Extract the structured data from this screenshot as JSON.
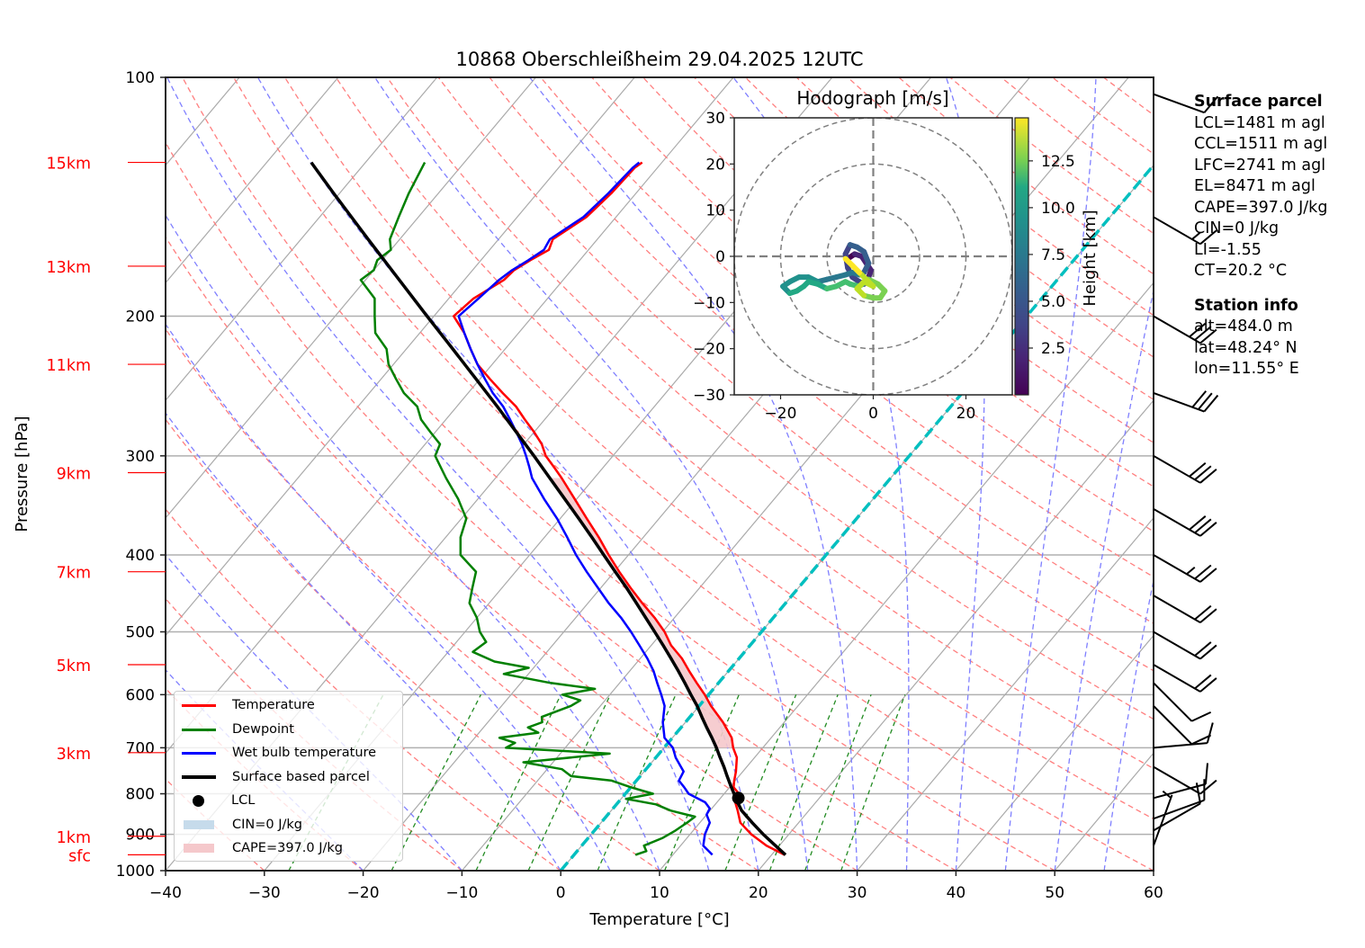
{
  "title": "10868 Oberschleißheim 29.04.2025 12UTC",
  "colors": {
    "temperature": "#ff0000",
    "dewpoint": "#008000",
    "wetbulb": "#0000ff",
    "parcel": "#000000",
    "freezing": "#00bfbf",
    "dry_adiabat": "#ff7f7f",
    "moist_adiabat": "#7f7fff",
    "mixing_ratio": "#228b22",
    "cape_fill": "#f5c8cb",
    "cin_fill": "#c6dbeb"
  },
  "chart_data": {
    "type": "skewt",
    "title": "10868 Oberschleißheim 29.04.2025 12UTC",
    "xlabel": "Temperature [°C]",
    "ylabel": "Pressure [hPa]",
    "xlim": [
      -40,
      60
    ],
    "ylim": [
      1000,
      100
    ],
    "xticks": [
      "−40",
      "−30",
      "−20",
      "−10",
      "0",
      "10",
      "20",
      "30",
      "40",
      "50",
      "60"
    ],
    "xtick_values": [
      -40,
      -30,
      -20,
      -10,
      0,
      10,
      20,
      30,
      40,
      50,
      60
    ],
    "yticks": [
      "100",
      "200",
      "300",
      "400",
      "500",
      "600",
      "700",
      "800",
      "900",
      "1000"
    ],
    "ytick_values": [
      100,
      200,
      300,
      400,
      500,
      600,
      700,
      800,
      900,
      1000
    ],
    "height_labels": [
      {
        "label": "15km",
        "p": 128
      },
      {
        "label": "13km",
        "p": 173
      },
      {
        "label": "11km",
        "p": 230
      },
      {
        "label": "9km",
        "p": 315
      },
      {
        "label": "7km",
        "p": 420
      },
      {
        "label": "5km",
        "p": 550
      },
      {
        "label": "3km",
        "p": 710
      },
      {
        "label": "1km",
        "p": 905
      },
      {
        "label": "sfc",
        "p": 955
      }
    ],
    "series": [
      {
        "name": "Temperature",
        "p": [
          955,
          930,
          900,
          870,
          840,
          815,
          800,
          785,
          770,
          750,
          720,
          700,
          680,
          650,
          620,
          600,
          580,
          560,
          540,
          520,
          500,
          480,
          460,
          440,
          420,
          400,
          380,
          360,
          340,
          320,
          310,
          300,
          290,
          280,
          270,
          260,
          250,
          240,
          230,
          220,
          210,
          200,
          190,
          180,
          175,
          170,
          165,
          160,
          150,
          140,
          130,
          128
        ],
        "t": [
          21.3,
          18.7,
          16.2,
          14.1,
          12.8,
          11.6,
          11.5,
          10.4,
          9.9,
          9.3,
          8.2,
          7.0,
          6.0,
          3.8,
          1.2,
          -0.4,
          -2.2,
          -4.0,
          -5.8,
          -8.0,
          -9.8,
          -12.0,
          -14.5,
          -17.0,
          -19.5,
          -22.0,
          -24.5,
          -27.3,
          -30.2,
          -33.3,
          -35.0,
          -36.8,
          -38.2,
          -40.0,
          -42.0,
          -44.0,
          -46.5,
          -49.0,
          -51.5,
          -53.5,
          -55.5,
          -58.0,
          -57.5,
          -56.0,
          -55.8,
          -55.0,
          -54.0,
          -54.5,
          -53.0,
          -52.5,
          -52.3,
          -52.0
        ]
      },
      {
        "name": "Dewpoint",
        "p": [
          955,
          945,
          930,
          910,
          890,
          870,
          855,
          840,
          825,
          812,
          800,
          785,
          770,
          760,
          745,
          730,
          712,
          700,
          690,
          680,
          670,
          660,
          650,
          640,
          620,
          610,
          600,
          590,
          580,
          565,
          555,
          545,
          530,
          515,
          500,
          480,
          460,
          440,
          420,
          400,
          380,
          360,
          340,
          320,
          300,
          290,
          280,
          270,
          260,
          250,
          240,
          230,
          220,
          210,
          200,
          190,
          180,
          175,
          170,
          165,
          160,
          150,
          140,
          128
        ],
        "t": [
          6.2,
          7.0,
          6.3,
          7.5,
          8.2,
          8.7,
          9.0,
          6.0,
          4.0,
          0.5,
          2.8,
          0.0,
          -2.5,
          -7.0,
          -8.5,
          -13.0,
          -5.0,
          -16.0,
          -15.5,
          -17.5,
          -14.0,
          -15.5,
          -14.5,
          -15.0,
          -13.0,
          -12.5,
          -14.8,
          -12.0,
          -17.0,
          -22.5,
          -20.5,
          -24.5,
          -27.5,
          -27.0,
          -28.5,
          -30.0,
          -32.0,
          -33.0,
          -34.0,
          -37.0,
          -38.5,
          -39.5,
          -42.0,
          -45.0,
          -48.0,
          -48.5,
          -50.5,
          -52.5,
          -54.0,
          -56.5,
          -58.5,
          -60.5,
          -62.0,
          -64.5,
          -66.0,
          -67.5,
          -70.5,
          -70.0,
          -70.5,
          -70.0,
          -71.0,
          -72.0,
          -73.0,
          -74.0
        ]
      },
      {
        "name": "Wet bulb temperature",
        "p": [
          955,
          930,
          900,
          870,
          850,
          835,
          820,
          800,
          785,
          770,
          750,
          720,
          700,
          680,
          650,
          620,
          600,
          580,
          560,
          540,
          520,
          500,
          480,
          460,
          440,
          420,
          400,
          380,
          360,
          340,
          320,
          310,
          300,
          290,
          280,
          270,
          260,
          250,
          240,
          230,
          220,
          210,
          200,
          190,
          180,
          175,
          170,
          165,
          160,
          150,
          140,
          130,
          128
        ],
        "t": [
          14.0,
          12.3,
          11.5,
          11.0,
          10.0,
          9.8,
          8.8,
          6.4,
          5.4,
          4.3,
          4.0,
          2.0,
          0.9,
          -0.8,
          -2.3,
          -3.5,
          -4.8,
          -6.2,
          -7.6,
          -9.3,
          -11.2,
          -13.2,
          -15.4,
          -17.9,
          -20.3,
          -22.8,
          -25.3,
          -27.7,
          -30.3,
          -33.3,
          -36.3,
          -37.5,
          -38.8,
          -40.2,
          -41.8,
          -43.5,
          -45.3,
          -47.5,
          -49.5,
          -51.5,
          -53.5,
          -55.5,
          -57.5,
          -57.0,
          -56.5,
          -56.0,
          -55.2,
          -54.5,
          -54.8,
          -53.3,
          -52.8,
          -52.5,
          -52.3
        ]
      },
      {
        "name": "Surface based parcel",
        "p": [
          955,
          930,
          900,
          870,
          840,
          815,
          800,
          780,
          760,
          740,
          720,
          700,
          680,
          660,
          640,
          620,
          600,
          580,
          560,
          540,
          520,
          500,
          480,
          460,
          440,
          420,
          400,
          380,
          360,
          340,
          320,
          300,
          280,
          260,
          240,
          220,
          200,
          180,
          160,
          140,
          128
        ],
        "t": [
          21.4,
          19.6,
          17.4,
          15.3,
          13.2,
          11.8,
          11.0,
          9.9,
          8.8,
          7.7,
          6.5,
          5.3,
          4.0,
          2.6,
          1.2,
          -0.2,
          -1.8,
          -3.4,
          -5.1,
          -6.9,
          -8.8,
          -10.8,
          -12.9,
          -15.1,
          -17.4,
          -19.9,
          -22.5,
          -25.2,
          -28.1,
          -31.2,
          -34.5,
          -38.0,
          -41.8,
          -45.9,
          -50.4,
          -55.3,
          -60.7,
          -66.6,
          -73.2,
          -80.6,
          -85.5
        ]
      },
      {
        "name": "Freezing level",
        "p": [
          1000,
          100
        ],
        "t": [
          0,
          0
        ]
      }
    ],
    "lcl": {
      "label": "LCL",
      "p": 810,
      "t": 11.8
    },
    "cape": {
      "label": "CAPE=397.0 J/kg",
      "p_bottom": 700,
      "p_top": 318
    },
    "cin": {
      "label": "CIN=0 J/kg"
    },
    "legend": [
      "Temperature",
      "Dewpoint",
      "Wet bulb temperature",
      "Surface based parcel",
      "LCL",
      "CIN=0 J/kg",
      "CAPE=397.0 J/kg"
    ],
    "legend_position": "lower-left",
    "wind_barbs": [
      {
        "p": 105,
        "speed_kt": 10,
        "dir": 290
      },
      {
        "p": 150,
        "speed_kt": 15,
        "dir": 300
      },
      {
        "p": 200,
        "speed_kt": 30,
        "dir": 300
      },
      {
        "p": 250,
        "speed_kt": 30,
        "dir": 290
      },
      {
        "p": 300,
        "speed_kt": 30,
        "dir": 300
      },
      {
        "p": 350,
        "speed_kt": 30,
        "dir": 300
      },
      {
        "p": 400,
        "speed_kt": 25,
        "dir": 300
      },
      {
        "p": 450,
        "speed_kt": 20,
        "dir": 300
      },
      {
        "p": 500,
        "speed_kt": 20,
        "dir": 300
      },
      {
        "p": 550,
        "speed_kt": 20,
        "dir": 300
      },
      {
        "p": 580,
        "speed_kt": 10,
        "dir": 315
      },
      {
        "p": 620,
        "speed_kt": 10,
        "dir": 315
      },
      {
        "p": 700,
        "speed_kt": 10,
        "dir": 265
      },
      {
        "p": 740,
        "speed_kt": 10,
        "dir": 300
      },
      {
        "p": 810,
        "speed_kt": 10,
        "dir": 255
      },
      {
        "p": 860,
        "speed_kt": 10,
        "dir": 250
      },
      {
        "p": 890,
        "speed_kt": 10,
        "dir": 240
      },
      {
        "p": 930,
        "speed_kt": 5,
        "dir": 200
      }
    ],
    "hodograph": {
      "title": "Hodograph [m/s]",
      "xlim": [
        -30,
        30
      ],
      "ylim": [
        -30,
        30
      ],
      "xticks": [
        "−20",
        "0",
        "20"
      ],
      "xtick_values": [
        -20,
        0,
        20
      ],
      "yticks": [
        "30",
        "20",
        "10",
        "0",
        "−10",
        "−20",
        "−30"
      ],
      "ytick_values": [
        30,
        20,
        10,
        0,
        -10,
        -20,
        -30
      ],
      "rings": [
        10,
        20,
        30
      ],
      "colorbar_label": "Height [km]",
      "colorbar_ticks": [
        "2.5",
        "5.0",
        "7.5",
        "10.0",
        "12.5"
      ],
      "colorbar_values": [
        2.5,
        5.0,
        7.5,
        10.0,
        12.5
      ],
      "colorbar_range": [
        0,
        14.8
      ],
      "u": [
        -5.5,
        -4.0,
        -2.5,
        -1.5,
        -0.5,
        -1.0,
        -2.0,
        -3.0,
        -4.5,
        -5.5,
        -6.0,
        -5.0,
        -3.5,
        -2.0,
        -1.0,
        -2.0,
        -3.0,
        -4.5,
        -6.0,
        -8.0,
        -10.0,
        -12.0,
        -14.0,
        -16.0,
        -18.0,
        -19.5,
        -18.0,
        -16.5,
        -15.0,
        -14.0,
        -12.0,
        -10.0,
        -8.0,
        -6.0,
        -5.0,
        -3.0,
        -1.0,
        1.0,
        2.5,
        1.5,
        0.0,
        -2.0,
        -3.5,
        -2.0,
        0.0,
        -1.5,
        -3.0,
        -4.5,
        -6.0
      ],
      "v": [
        -0.5,
        0.5,
        0.0,
        -1.5,
        -3.0,
        -4.5,
        -6.0,
        -5.5,
        -4.5,
        -2.5,
        0.5,
        2.5,
        2.0,
        1.0,
        -1.5,
        -3.5,
        -4.0,
        -3.5,
        -4.0,
        -4.5,
        -5.0,
        -5.5,
        -4.5,
        -4.5,
        -5.5,
        -6.5,
        -8.0,
        -7.5,
        -6.5,
        -5.5,
        -6.0,
        -7.0,
        -6.5,
        -5.5,
        -6.0,
        -6.5,
        -5.0,
        -6.0,
        -7.5,
        -9.0,
        -9.0,
        -8.5,
        -7.0,
        -5.5,
        -6.5,
        -5.0,
        -3.5,
        -2.0,
        -0.5
      ],
      "h": [
        0.5,
        0.8,
        1.1,
        1.4,
        1.7,
        2.0,
        2.3,
        2.6,
        2.9,
        3.2,
        3.5,
        3.8,
        4.1,
        4.4,
        4.7,
        5.0,
        5.3,
        5.6,
        5.9,
        6.2,
        6.5,
        6.8,
        7.1,
        7.4,
        7.7,
        8.0,
        8.3,
        8.6,
        8.9,
        9.2,
        9.5,
        9.8,
        10.1,
        10.4,
        10.7,
        11.0,
        11.3,
        11.6,
        11.9,
        12.2,
        12.5,
        12.8,
        13.1,
        13.4,
        13.7,
        14.0,
        14.2,
        14.5,
        14.8
      ]
    }
  },
  "info": {
    "surface_title": "Surface parcel",
    "surface": [
      "LCL=1481 m agl",
      "CCL=1511 m agl",
      "LFC=2741 m agl",
      "EL=8471 m agl",
      "CAPE=397.0 J/kg",
      "CIN=0 J/kg",
      "LI=-1.55",
      "CT=20.2 °C"
    ],
    "station_title": "Station info",
    "station": [
      "alt=484.0 m",
      "lat=48.24° N",
      "lon=11.55° E"
    ]
  }
}
